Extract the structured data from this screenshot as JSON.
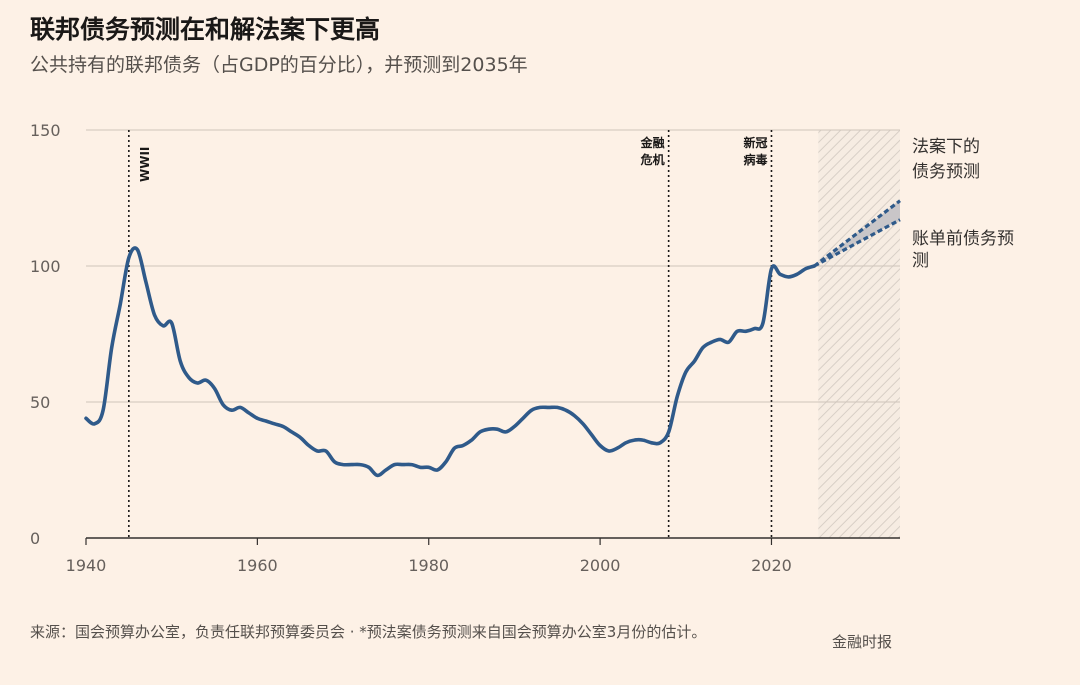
{
  "title": "联邦债务预测在和解法案下更高",
  "subtitle": "公共持有的联邦债务（占GDP的百分比），并预测到2035年",
  "source": "来源：国会预算办公室，负责任联邦预算委员会 · *预法案债务预测来自国会预算办公室3月份的估计。",
  "brand": "金融时报",
  "colors": {
    "background": "#fdf1e6",
    "line": "#2f5a8a",
    "projection_band": "#c9c6c8",
    "grid": "#cfc5bb",
    "axis": "#33302e"
  },
  "chart_data": {
    "type": "line",
    "xlim": [
      1940,
      2035
    ],
    "ylim": [
      0,
      150
    ],
    "xticks": [
      1940,
      1960,
      1980,
      2000,
      2020
    ],
    "yticks": [
      0,
      50,
      100,
      150
    ],
    "grid": true,
    "series": [
      {
        "values_x": [
          1940,
          1941,
          1942,
          1943,
          1944,
          1945,
          1946,
          1947,
          1948,
          1949,
          1950,
          1951,
          1952,
          1953,
          1954,
          1955,
          1956,
          1957,
          1958,
          1959,
          1960,
          1961,
          1962,
          1963,
          1964,
          1965,
          1966,
          1967,
          1968,
          1969,
          1970,
          1971,
          1972,
          1973,
          1974,
          1975,
          1976,
          1977,
          1978,
          1979,
          1980,
          1981,
          1982,
          1983,
          1984,
          1985,
          1986,
          1987,
          1988,
          1989,
          1990,
          1991,
          1992,
          1993,
          1994,
          1995,
          1996,
          1997,
          1998,
          1999,
          2000,
          2001,
          2002,
          2003,
          2004,
          2005,
          2006,
          2007,
          2008,
          2009,
          2010,
          2011,
          2012,
          2013,
          2014,
          2015,
          2016,
          2017,
          2018,
          2019,
          2020,
          2021,
          2022,
          2023,
          2024,
          2025
        ],
        "values_y": [
          44,
          42,
          47,
          70,
          86,
          103,
          106,
          94,
          82,
          78,
          79,
          65,
          59,
          57,
          58,
          55,
          49,
          47,
          48,
          46,
          44,
          43,
          42,
          41,
          39,
          37,
          34,
          32,
          32,
          28,
          27,
          27,
          27,
          26,
          23,
          25,
          27,
          27,
          27,
          26,
          26,
          25,
          28,
          33,
          34,
          36,
          39,
          40,
          40,
          39,
          41,
          44,
          47,
          48,
          48,
          48,
          47,
          45,
          42,
          38,
          34,
          32,
          33,
          35,
          36,
          36,
          35,
          35,
          39,
          52,
          61,
          65,
          70,
          72,
          73,
          72,
          76,
          76,
          77,
          79,
          99,
          97,
          96,
          97,
          99,
          100
        ]
      }
    ],
    "projection": {
      "x_start": 2025,
      "x_end": 2035,
      "law_projection_end": 124,
      "pre_bill_projection_end": 117
    },
    "shaded_forecast_region": [
      2025,
      2035
    ],
    "events": [
      {
        "x": 1945,
        "label": "WWII"
      },
      {
        "x": 2008,
        "label_lines": [
          "金融",
          "危机"
        ]
      },
      {
        "x": 2020,
        "label_lines": [
          "新冠",
          "病毒"
        ]
      }
    ],
    "annotations": {
      "law_projection_lines": [
        "法案下的",
        "债务预测"
      ],
      "pre_bill_projection_lines": [
        "账单前债务预",
        "测"
      ]
    }
  }
}
